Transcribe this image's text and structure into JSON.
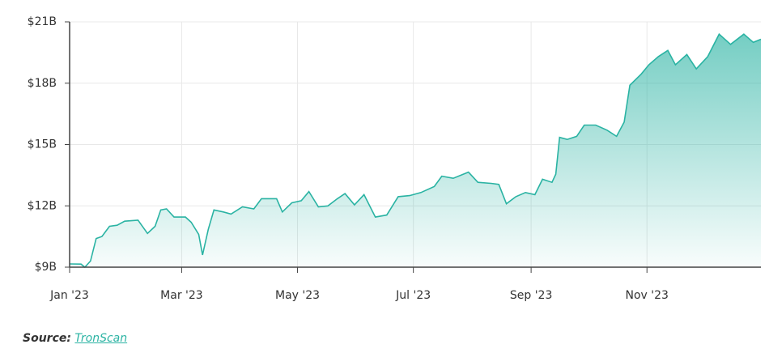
{
  "chart_data": {
    "type": "area",
    "x": [
      0,
      6,
      8,
      11,
      14,
      17,
      21,
      25,
      29,
      36,
      41,
      45,
      48,
      51,
      55,
      61,
      64,
      68,
      70,
      73,
      76,
      81,
      85,
      91,
      97,
      101,
      109,
      112,
      117,
      122,
      126,
      131,
      136,
      141,
      145,
      150,
      155,
      161,
      167,
      173,
      179,
      185,
      192,
      196,
      202,
      210,
      215,
      222,
      226,
      230,
      235,
      240,
      245,
      249,
      254,
      256,
      258,
      262,
      267,
      271,
      277,
      283,
      288,
      292,
      295,
      301,
      305,
      310,
      315,
      319,
      325,
      330,
      336,
      342,
      348,
      355,
      360,
      364
    ],
    "series": [
      {
        "name": "TronScan",
        "color": "#2ab3a3",
        "values": [
          9.16,
          9.15,
          9.0,
          9.3,
          10.4,
          10.5,
          11.0,
          11.05,
          11.25,
          11.3,
          10.65,
          11.0,
          11.8,
          11.85,
          11.45,
          11.45,
          11.2,
          10.6,
          9.6,
          10.85,
          11.8,
          11.7,
          11.6,
          11.95,
          11.85,
          12.35,
          12.35,
          11.7,
          12.15,
          12.25,
          12.7,
          11.95,
          12.0,
          12.35,
          12.6,
          12.05,
          12.55,
          11.45,
          11.55,
          12.45,
          12.5,
          12.65,
          12.95,
          13.45,
          13.35,
          13.65,
          13.15,
          13.1,
          13.05,
          12.1,
          12.45,
          12.65,
          12.55,
          13.3,
          13.15,
          13.55,
          15.35,
          15.25,
          15.4,
          15.95,
          15.95,
          15.7,
          15.4,
          16.1,
          17.9,
          18.45,
          18.9,
          19.3,
          19.6,
          18.9,
          19.4,
          18.7,
          19.3,
          20.4,
          19.9,
          20.4,
          20.0,
          20.15
        ]
      }
    ],
    "xlim": [
      0,
      364
    ],
    "xticks": [
      {
        "value": 0,
        "label": "Jan '23"
      },
      {
        "value": 59,
        "label": "Mar '23"
      },
      {
        "value": 120,
        "label": "May '23"
      },
      {
        "value": 181,
        "label": "Jul '23"
      },
      {
        "value": 243,
        "label": "Sep '23"
      },
      {
        "value": 304,
        "label": "Nov '23"
      }
    ],
    "ylim": [
      9,
      21
    ],
    "yticks": [
      {
        "value": 9,
        "label": "$9B"
      },
      {
        "value": 12,
        "label": "$12B"
      },
      {
        "value": 15,
        "label": "$15B"
      },
      {
        "value": 18,
        "label": "$18B"
      },
      {
        "value": 21,
        "label": "$21B"
      }
    ],
    "grid": true,
    "source_label": "Source:",
    "source": "TronScan"
  }
}
